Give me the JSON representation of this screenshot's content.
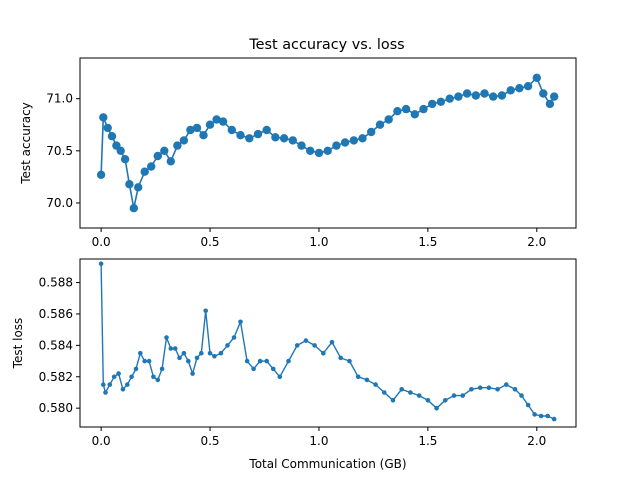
{
  "title": "Test accuracy vs. loss",
  "chart_data": [
    {
      "type": "line",
      "title": "Test accuracy vs. loss",
      "xlabel": "",
      "ylabel": "Test accuracy",
      "xlim": [
        -0.097,
        2.18
      ],
      "ylim": [
        69.76,
        71.39
      ],
      "xticks": [
        0.0,
        0.5,
        1.0,
        1.5,
        2.0
      ],
      "xtick_labels": [
        "0.0",
        "0.5",
        "1.0",
        "1.5",
        "2.0"
      ],
      "yticks": [
        70.0,
        70.5,
        71.0
      ],
      "ytick_labels": [
        "70.0",
        "70.5",
        "71.0"
      ],
      "grid": false,
      "color": "#1f77b4",
      "marker": "circle",
      "series": [
        {
          "x": [
            0.0,
            0.01,
            0.03,
            0.05,
            0.07,
            0.09,
            0.11,
            0.13,
            0.15,
            0.17,
            0.2,
            0.23,
            0.26,
            0.29,
            0.32,
            0.35,
            0.38,
            0.41,
            0.44,
            0.47,
            0.5,
            0.53,
            0.56,
            0.6,
            0.64,
            0.68,
            0.72,
            0.76,
            0.8,
            0.84,
            0.88,
            0.92,
            0.96,
            1.0,
            1.04,
            1.08,
            1.12,
            1.16,
            1.2,
            1.24,
            1.28,
            1.32,
            1.36,
            1.4,
            1.44,
            1.48,
            1.52,
            1.56,
            1.6,
            1.64,
            1.68,
            1.72,
            1.76,
            1.8,
            1.84,
            1.88,
            1.92,
            1.96,
            2.0,
            2.03,
            2.06,
            2.08
          ],
          "y": [
            70.27,
            70.82,
            70.72,
            70.64,
            70.55,
            70.5,
            70.42,
            70.18,
            69.95,
            70.15,
            70.3,
            70.35,
            70.45,
            70.5,
            70.4,
            70.55,
            70.6,
            70.7,
            70.72,
            70.65,
            70.75,
            70.8,
            70.78,
            70.7,
            70.65,
            70.62,
            70.66,
            70.7,
            70.63,
            70.62,
            70.6,
            70.55,
            70.5,
            70.48,
            70.5,
            70.55,
            70.58,
            70.6,
            70.62,
            70.68,
            70.75,
            70.8,
            70.88,
            70.9,
            70.85,
            70.9,
            70.95,
            70.97,
            71.0,
            71.02,
            71.05,
            71.03,
            71.05,
            71.02,
            71.03,
            71.08,
            71.1,
            71.12,
            71.2,
            71.05,
            70.95,
            71.02
          ]
        }
      ]
    },
    {
      "type": "line",
      "title": "",
      "xlabel": "Total Communication (GB)",
      "ylabel": "Test loss",
      "xlim": [
        -0.097,
        2.18
      ],
      "ylim": [
        0.5788,
        0.5895
      ],
      "xticks": [
        0.0,
        0.5,
        1.0,
        1.5,
        2.0
      ],
      "xtick_labels": [
        "0.0",
        "0.5",
        "1.0",
        "1.5",
        "2.0"
      ],
      "yticks": [
        0.58,
        0.582,
        0.584,
        0.586,
        0.588
      ],
      "ytick_labels": [
        "0.580",
        "0.582",
        "0.584",
        "0.586",
        "0.588"
      ],
      "grid": false,
      "color": "#1f77b4",
      "marker": "circle",
      "series": [
        {
          "x": [
            0.0,
            0.01,
            0.02,
            0.04,
            0.06,
            0.08,
            0.1,
            0.12,
            0.14,
            0.16,
            0.18,
            0.2,
            0.22,
            0.24,
            0.26,
            0.28,
            0.3,
            0.32,
            0.34,
            0.36,
            0.38,
            0.4,
            0.42,
            0.44,
            0.46,
            0.48,
            0.5,
            0.52,
            0.55,
            0.58,
            0.61,
            0.64,
            0.67,
            0.7,
            0.73,
            0.76,
            0.79,
            0.82,
            0.86,
            0.9,
            0.94,
            0.98,
            1.02,
            1.06,
            1.1,
            1.14,
            1.18,
            1.22,
            1.26,
            1.3,
            1.34,
            1.38,
            1.42,
            1.46,
            1.5,
            1.54,
            1.58,
            1.62,
            1.66,
            1.7,
            1.74,
            1.78,
            1.82,
            1.86,
            1.9,
            1.93,
            1.96,
            1.99,
            2.02,
            2.05,
            2.08
          ],
          "y": [
            0.5892,
            0.5815,
            0.581,
            0.5815,
            0.582,
            0.5822,
            0.5812,
            0.5815,
            0.582,
            0.5825,
            0.5835,
            0.583,
            0.583,
            0.582,
            0.5818,
            0.5825,
            0.5845,
            0.5838,
            0.5838,
            0.5832,
            0.5835,
            0.583,
            0.5822,
            0.5832,
            0.5835,
            0.5862,
            0.5835,
            0.5833,
            0.5835,
            0.584,
            0.5845,
            0.5855,
            0.583,
            0.5825,
            0.583,
            0.583,
            0.5825,
            0.582,
            0.583,
            0.584,
            0.5843,
            0.584,
            0.5835,
            0.5842,
            0.5832,
            0.583,
            0.582,
            0.5818,
            0.5815,
            0.581,
            0.5805,
            0.5812,
            0.581,
            0.5808,
            0.5805,
            0.58,
            0.5805,
            0.5808,
            0.5808,
            0.5812,
            0.5813,
            0.5813,
            0.5812,
            0.5815,
            0.5812,
            0.5808,
            0.5802,
            0.5796,
            0.5795,
            0.5795,
            0.5793
          ]
        }
      ]
    }
  ]
}
